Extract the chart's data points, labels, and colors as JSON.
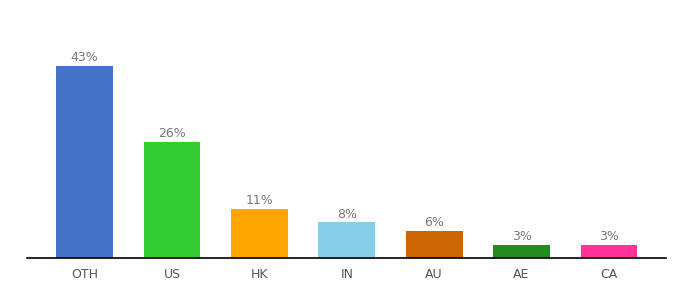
{
  "categories": [
    "OTH",
    "US",
    "HK",
    "IN",
    "AU",
    "AE",
    "CA"
  ],
  "values": [
    43,
    26,
    11,
    8,
    6,
    3,
    3
  ],
  "labels": [
    "43%",
    "26%",
    "11%",
    "8%",
    "6%",
    "3%",
    "3%"
  ],
  "bar_colors": [
    "#4472C4",
    "#33CC33",
    "#FFA500",
    "#87CEEB",
    "#CC6600",
    "#228B22",
    "#FF3399"
  ],
  "background_color": "#ffffff",
  "label_fontsize": 9,
  "tick_fontsize": 9,
  "label_color": "#777777"
}
